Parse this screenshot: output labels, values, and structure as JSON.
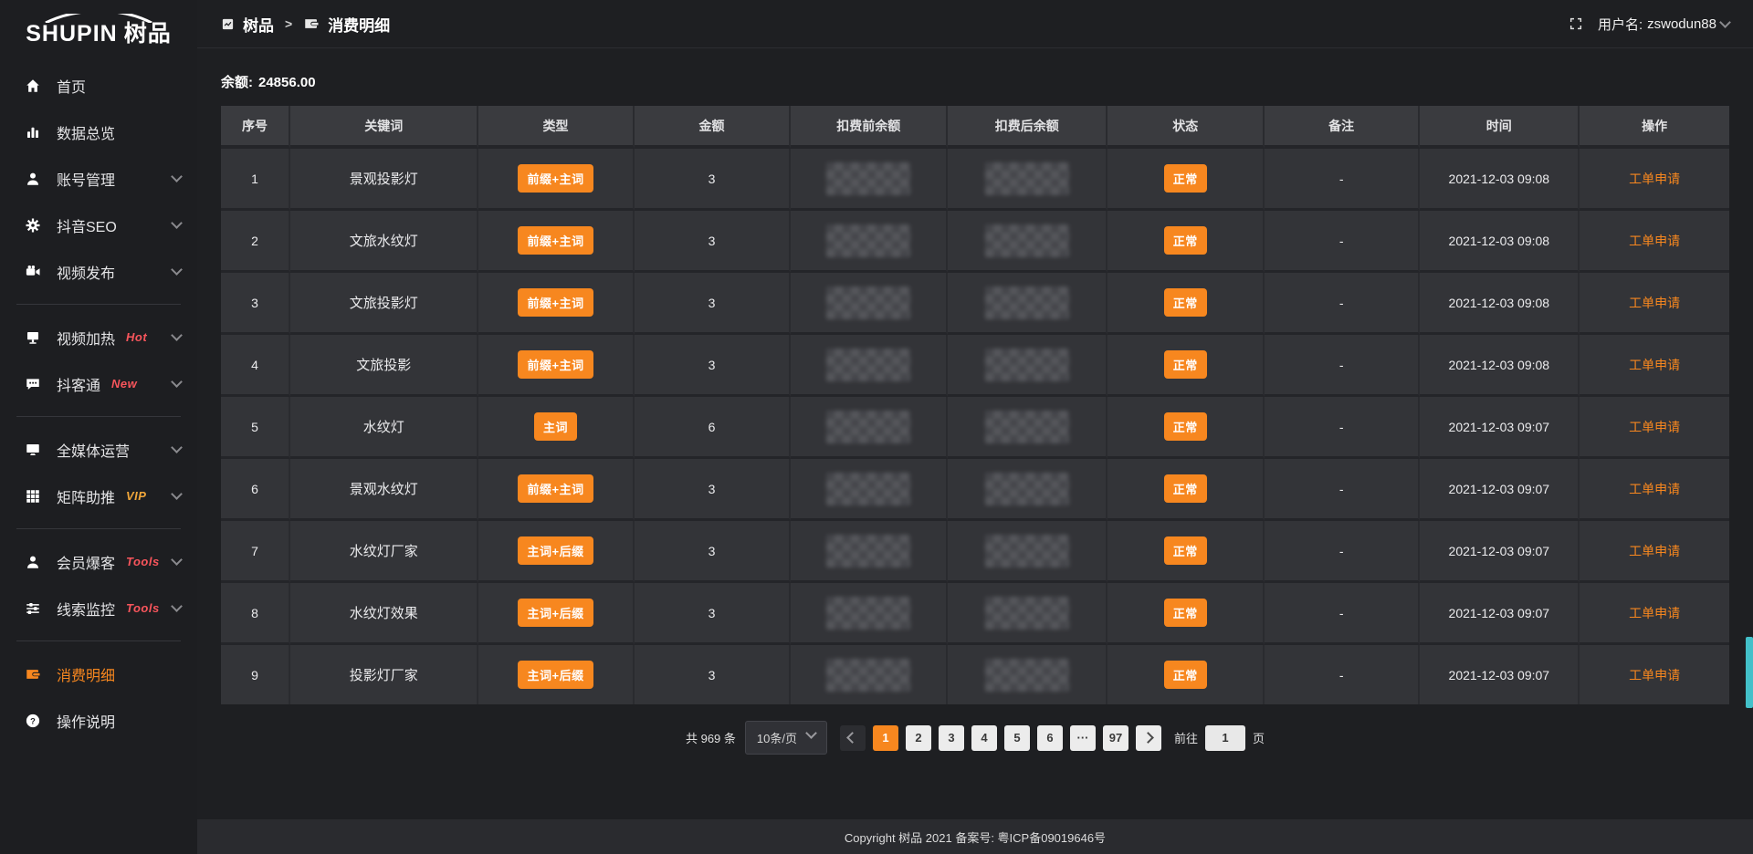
{
  "colors": {
    "accent": "#f7871f",
    "badge_red": "#f8555c",
    "badge_vip": "#f0a63a",
    "scrollbar": "#43c0c9"
  },
  "brand": {
    "name": "SHUPIN",
    "suffix": "树品"
  },
  "topbar": {
    "breadcrumb": {
      "root": "树品",
      "separator": ">",
      "current": "消费明细"
    },
    "username_label": "用户名:",
    "username": "zswodun88"
  },
  "sidebar": {
    "groups": [
      {
        "items": [
          {
            "icon": "home-icon",
            "label": "首页"
          },
          {
            "icon": "chart-icon",
            "label": "数据总览"
          },
          {
            "icon": "user-icon",
            "label": "账号管理",
            "chevron": true
          },
          {
            "icon": "gear-icon",
            "label": "抖音SEO",
            "chevron": true
          },
          {
            "icon": "video-icon",
            "label": "视频发布",
            "chevron": true
          }
        ]
      },
      {
        "items": [
          {
            "icon": "screen-icon",
            "label": "视频加热",
            "badge": "Hot",
            "badge_style": "red",
            "chevron": true
          },
          {
            "icon": "chat-icon",
            "label": "抖客通",
            "badge": "New",
            "badge_style": "red",
            "chevron": true
          }
        ]
      },
      {
        "items": [
          {
            "icon": "monitor-icon",
            "label": "全媒体运营",
            "chevron": true
          },
          {
            "icon": "grid-icon",
            "label": "矩阵助推",
            "badge": "VIP",
            "badge_style": "gold",
            "chevron": true
          }
        ]
      },
      {
        "items": [
          {
            "icon": "member-icon",
            "label": "会员爆客",
            "badge": "Tools",
            "badge_style": "red",
            "chevron": true
          },
          {
            "icon": "sliders-icon",
            "label": "线索监控",
            "badge": "Tools",
            "badge_style": "red",
            "chevron": true
          }
        ]
      },
      {
        "items": [
          {
            "icon": "wallet-icon",
            "label": "消费明细",
            "active": true
          },
          {
            "icon": "question-icon",
            "label": "操作说明"
          }
        ]
      }
    ]
  },
  "main": {
    "balance_label": "余额:",
    "balance_value": "24856.00",
    "table": {
      "columns": [
        "序号",
        "关键词",
        "类型",
        "金额",
        "扣费前余额",
        "扣费后余额",
        "状态",
        "备注",
        "时间",
        "操作"
      ],
      "rows": [
        {
          "index": "1",
          "keyword": "景观投影灯",
          "type": "前缀+主词",
          "amount": "3",
          "status": "正常",
          "remark": "-",
          "time": "2021-12-03 09:08",
          "action": "工单申请"
        },
        {
          "index": "2",
          "keyword": "文旅水纹灯",
          "type": "前缀+主词",
          "amount": "3",
          "status": "正常",
          "remark": "-",
          "time": "2021-12-03 09:08",
          "action": "工单申请"
        },
        {
          "index": "3",
          "keyword": "文旅投影灯",
          "type": "前缀+主词",
          "amount": "3",
          "status": "正常",
          "remark": "-",
          "time": "2021-12-03 09:08",
          "action": "工单申请"
        },
        {
          "index": "4",
          "keyword": "文旅投影",
          "type": "前缀+主词",
          "amount": "3",
          "status": "正常",
          "remark": "-",
          "time": "2021-12-03 09:08",
          "action": "工单申请"
        },
        {
          "index": "5",
          "keyword": "水纹灯",
          "type": "主词",
          "amount": "6",
          "status": "正常",
          "remark": "-",
          "time": "2021-12-03 09:07",
          "action": "工单申请"
        },
        {
          "index": "6",
          "keyword": "景观水纹灯",
          "type": "前缀+主词",
          "amount": "3",
          "status": "正常",
          "remark": "-",
          "time": "2021-12-03 09:07",
          "action": "工单申请"
        },
        {
          "index": "7",
          "keyword": "水纹灯厂家",
          "type": "主词+后缀",
          "amount": "3",
          "status": "正常",
          "remark": "-",
          "time": "2021-12-03 09:07",
          "action": "工单申请"
        },
        {
          "index": "8",
          "keyword": "水纹灯效果",
          "type": "主词+后缀",
          "amount": "3",
          "status": "正常",
          "remark": "-",
          "time": "2021-12-03 09:07",
          "action": "工单申请"
        },
        {
          "index": "9",
          "keyword": "投影灯厂家",
          "type": "主词+后缀",
          "amount": "3",
          "status": "正常",
          "remark": "-",
          "time": "2021-12-03 09:07",
          "action": "工单申请"
        }
      ]
    },
    "pagination": {
      "total": "共 969 条",
      "page_size": "10条/页",
      "pages": [
        "1",
        "2",
        "3",
        "4",
        "5",
        "6",
        "···",
        "97"
      ],
      "active_page": "1",
      "goto_label": "前往",
      "goto_value": "1",
      "goto_unit": "页"
    }
  },
  "footer": {
    "copyright": "Copyright 树品 2021 备案号: 粤ICP备09019646号"
  }
}
